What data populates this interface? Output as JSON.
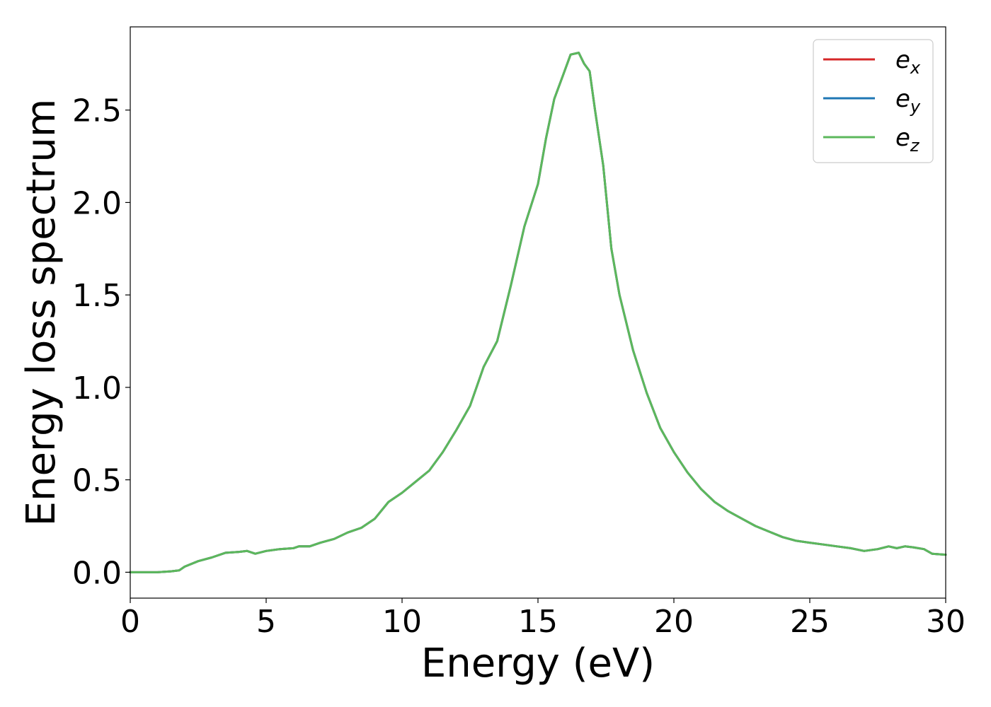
{
  "chart_data": {
    "type": "line",
    "xlabel": "Energy (eV)",
    "ylabel": "Energy loss spectrum",
    "xlim": [
      0,
      30
    ],
    "ylim": [
      -0.14,
      2.95
    ],
    "xticks": [
      0,
      5,
      10,
      15,
      20,
      25,
      30
    ],
    "xtick_labels": [
      "0",
      "5",
      "10",
      "15",
      "20",
      "25",
      "30"
    ],
    "yticks": [
      0.0,
      0.5,
      1.0,
      1.5,
      2.0,
      2.5
    ],
    "ytick_labels": [
      "0.0",
      "0.5",
      "1.0",
      "1.5",
      "2.0",
      "2.5"
    ],
    "grid": false,
    "legend_position": "top-right",
    "x": [
      0,
      0.5,
      1.0,
      1.5,
      1.8,
      2.0,
      2.5,
      3.0,
      3.5,
      4.0,
      4.3,
      4.6,
      5.0,
      5.5,
      6.0,
      6.2,
      6.6,
      7.0,
      7.5,
      8.0,
      8.5,
      9.0,
      9.5,
      10.0,
      10.5,
      11.0,
      11.5,
      12.0,
      12.5,
      13.0,
      13.5,
      14.0,
      14.5,
      15.0,
      15.3,
      15.6,
      15.9,
      16.2,
      16.5,
      16.7,
      16.9,
      17.1,
      17.4,
      17.7,
      18.0,
      18.5,
      19.0,
      19.5,
      20.0,
      20.5,
      21.0,
      21.5,
      22.0,
      22.5,
      23.0,
      23.5,
      24.0,
      24.5,
      25.0,
      25.5,
      26.0,
      26.5,
      27.0,
      27.5,
      27.9,
      28.2,
      28.5,
      28.8,
      29.2,
      29.5,
      30.0
    ],
    "series": [
      {
        "name": "e_x",
        "color": "#d62728",
        "values": [
          0.0,
          0.0,
          0.0,
          0.005,
          0.01,
          0.03,
          0.06,
          0.08,
          0.105,
          0.11,
          0.115,
          0.1,
          0.115,
          0.125,
          0.13,
          0.14,
          0.14,
          0.16,
          0.18,
          0.215,
          0.24,
          0.29,
          0.38,
          0.43,
          0.49,
          0.55,
          0.65,
          0.77,
          0.9,
          1.11,
          1.25,
          1.55,
          1.87,
          2.1,
          2.35,
          2.56,
          2.68,
          2.8,
          2.81,
          2.75,
          2.71,
          2.5,
          2.2,
          1.75,
          1.5,
          1.2,
          0.97,
          0.78,
          0.65,
          0.54,
          0.45,
          0.38,
          0.33,
          0.29,
          0.25,
          0.22,
          0.19,
          0.17,
          0.16,
          0.15,
          0.14,
          0.13,
          0.115,
          0.125,
          0.14,
          0.13,
          0.14,
          0.135,
          0.125,
          0.1,
          0.095
        ]
      },
      {
        "name": "e_y",
        "color": "#1f77b4",
        "values": [
          0.0,
          0.0,
          0.0,
          0.005,
          0.01,
          0.03,
          0.06,
          0.08,
          0.105,
          0.11,
          0.115,
          0.1,
          0.115,
          0.125,
          0.13,
          0.14,
          0.14,
          0.16,
          0.18,
          0.215,
          0.24,
          0.29,
          0.38,
          0.43,
          0.49,
          0.55,
          0.65,
          0.77,
          0.9,
          1.11,
          1.25,
          1.55,
          1.87,
          2.1,
          2.35,
          2.56,
          2.68,
          2.8,
          2.81,
          2.75,
          2.71,
          2.5,
          2.2,
          1.75,
          1.5,
          1.2,
          0.97,
          0.78,
          0.65,
          0.54,
          0.45,
          0.38,
          0.33,
          0.29,
          0.25,
          0.22,
          0.19,
          0.17,
          0.16,
          0.15,
          0.14,
          0.13,
          0.115,
          0.125,
          0.14,
          0.13,
          0.14,
          0.135,
          0.125,
          0.1,
          0.095
        ]
      },
      {
        "name": "e_z",
        "color": "#5cb85c",
        "values": [
          0.0,
          0.0,
          0.0,
          0.005,
          0.01,
          0.03,
          0.06,
          0.08,
          0.105,
          0.11,
          0.115,
          0.1,
          0.115,
          0.125,
          0.13,
          0.14,
          0.14,
          0.16,
          0.18,
          0.215,
          0.24,
          0.29,
          0.38,
          0.43,
          0.49,
          0.55,
          0.65,
          0.77,
          0.9,
          1.11,
          1.25,
          1.55,
          1.87,
          2.1,
          2.35,
          2.56,
          2.68,
          2.8,
          2.81,
          2.75,
          2.71,
          2.5,
          2.2,
          1.75,
          1.5,
          1.2,
          0.97,
          0.78,
          0.65,
          0.54,
          0.45,
          0.38,
          0.33,
          0.29,
          0.25,
          0.22,
          0.19,
          0.17,
          0.16,
          0.15,
          0.14,
          0.13,
          0.115,
          0.125,
          0.14,
          0.13,
          0.14,
          0.135,
          0.125,
          0.1,
          0.095
        ]
      }
    ],
    "legend": [
      {
        "base": "e",
        "sub": "x",
        "color": "#d62728"
      },
      {
        "base": "e",
        "sub": "y",
        "color": "#1f77b4"
      },
      {
        "base": "e",
        "sub": "z",
        "color": "#5cb85c"
      }
    ]
  }
}
